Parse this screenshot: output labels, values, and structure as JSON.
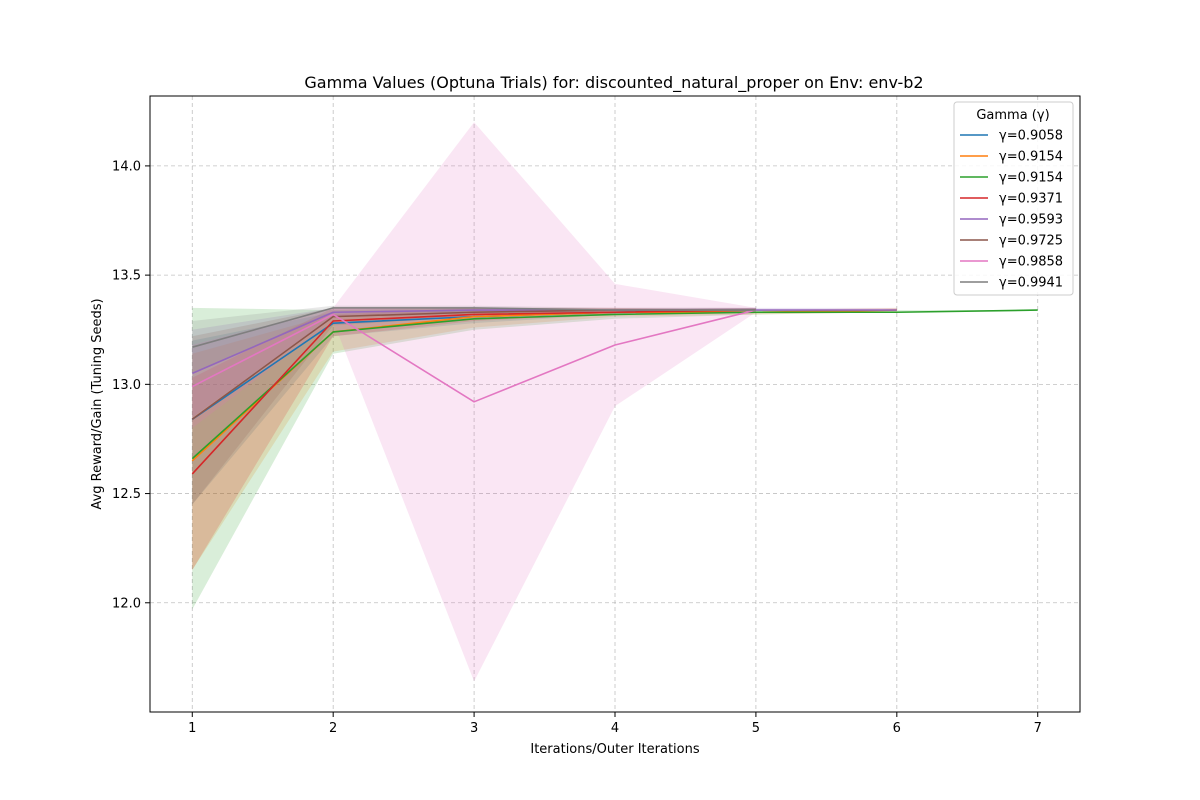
{
  "chart_data": {
    "type": "line",
    "title": "Gamma Values (Optuna Trials) for: discounted_natural_proper on Env: env-b2",
    "xlabel": "Iterations/Outer Iterations",
    "ylabel": "Avg Reward/Gain (Tuning Seeds)",
    "xlim": [
      0.7,
      7.3
    ],
    "ylim": [
      11.5,
      14.32
    ],
    "xticks": [
      1,
      2,
      3,
      4,
      5,
      6,
      7
    ],
    "yticks": [
      12.0,
      12.5,
      13.0,
      13.5,
      14.0
    ],
    "grid": true,
    "legend": {
      "title": "Gamma (γ)",
      "placement": "top-right"
    },
    "series": [
      {
        "name": "γ=0.9058",
        "color": "#1f77b4",
        "x": [
          1,
          2,
          3,
          4,
          5
        ],
        "values": [
          12.84,
          13.28,
          13.31,
          13.33,
          13.34
        ],
        "lower": [
          12.45,
          13.22,
          13.28,
          13.32,
          13.33
        ],
        "upper": [
          13.2,
          13.33,
          13.34,
          13.34,
          13.35
        ]
      },
      {
        "name": "γ=0.9154",
        "color": "#ff7f0e",
        "x": [
          1,
          2,
          3,
          4,
          5,
          6
        ],
        "values": [
          12.65,
          13.24,
          13.31,
          13.33,
          13.33,
          13.34
        ],
        "lower": [
          12.15,
          13.15,
          13.26,
          13.31,
          13.32,
          13.33
        ],
        "upper": [
          13.14,
          13.32,
          13.35,
          13.35,
          13.34,
          13.35
        ]
      },
      {
        "name": "γ=0.9154",
        "color": "#2ca02c",
        "x": [
          1,
          2,
          3,
          4,
          5,
          6,
          7
        ],
        "values": [
          12.66,
          13.24,
          13.3,
          13.32,
          13.33,
          13.33,
          13.34
        ],
        "lower": [
          11.97,
          13.14,
          13.25,
          13.3,
          13.32,
          13.33,
          13.34
        ],
        "upper": [
          13.35,
          13.34,
          13.35,
          13.34,
          13.34,
          13.34,
          13.34
        ]
      },
      {
        "name": "γ=0.9371",
        "color": "#d62728",
        "x": [
          1,
          2,
          3,
          4,
          5
        ],
        "values": [
          12.59,
          13.29,
          13.32,
          13.33,
          13.34
        ],
        "lower": [
          12.15,
          13.22,
          13.29,
          13.32,
          13.33
        ],
        "upper": [
          13.03,
          13.35,
          13.35,
          13.34,
          13.35
        ]
      },
      {
        "name": "γ=0.9593",
        "color": "#9467bd",
        "x": [
          1,
          2,
          3,
          4,
          5,
          6
        ],
        "values": [
          13.05,
          13.33,
          13.34,
          13.34,
          13.34,
          13.34
        ],
        "lower": [
          12.85,
          13.31,
          13.33,
          13.33,
          13.34,
          13.34
        ],
        "upper": [
          13.25,
          13.35,
          13.35,
          13.35,
          13.35,
          13.35
        ]
      },
      {
        "name": "γ=0.9725",
        "color": "#8c564b",
        "x": [
          1,
          2,
          3,
          4,
          5
        ],
        "values": [
          12.84,
          13.31,
          13.33,
          13.34,
          13.34
        ],
        "lower": [
          12.45,
          13.27,
          13.31,
          13.33,
          13.34
        ],
        "upper": [
          13.22,
          13.35,
          13.35,
          13.35,
          13.35
        ]
      },
      {
        "name": "γ=0.9858",
        "color": "#e377c2",
        "x": [
          1,
          2,
          3,
          4,
          5
        ],
        "values": [
          12.99,
          13.32,
          12.92,
          13.18,
          13.34
        ],
        "lower": [
          12.8,
          13.29,
          11.64,
          12.9,
          13.33
        ],
        "upper": [
          13.18,
          13.35,
          14.2,
          13.46,
          13.35
        ]
      },
      {
        "name": "γ=0.9941",
        "color": "#7f7f7f",
        "x": [
          1,
          2,
          3,
          4,
          5
        ],
        "values": [
          13.17,
          13.35,
          13.35,
          13.34,
          13.34
        ],
        "lower": [
          13.05,
          13.33,
          13.33,
          13.33,
          13.34
        ],
        "upper": [
          13.29,
          13.36,
          13.36,
          13.35,
          13.35
        ]
      }
    ]
  }
}
